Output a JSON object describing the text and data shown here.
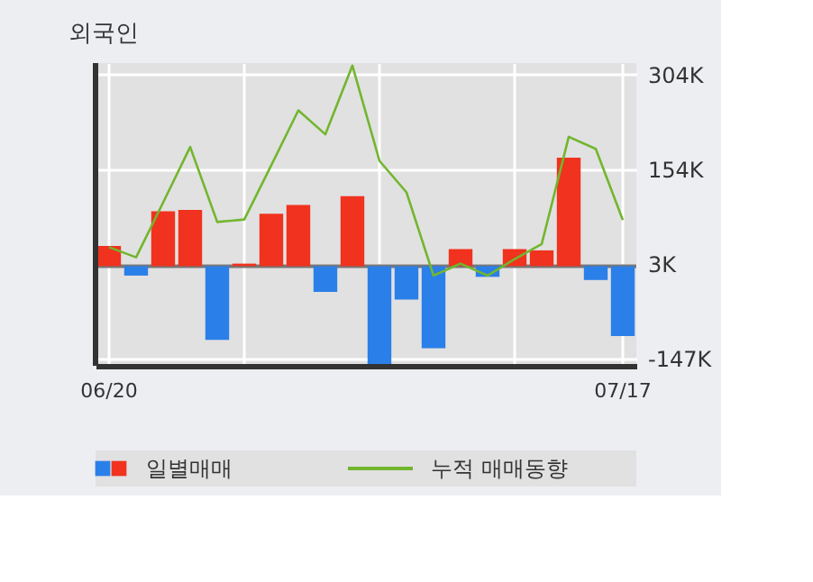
{
  "chart_data": {
    "type": "bar",
    "title": "외국인",
    "categories": [
      "06/20",
      null,
      null,
      null,
      null,
      null,
      null,
      null,
      null,
      null,
      null,
      null,
      null,
      null,
      null,
      null,
      null,
      null,
      null,
      "07/17"
    ],
    "series": [
      {
        "name": "일별매매",
        "values": [
          32,
          -15,
          87,
          89,
          -117,
          4,
          83,
          97,
          -41,
          111,
          -155,
          -53,
          -130,
          27,
          -17,
          27,
          25,
          172,
          -22,
          -111
        ],
        "colors": [
          "#f0321e",
          "#2b7fe8",
          "#f0321e",
          "#f0321e",
          "#2b7fe8",
          "#f0321e",
          "#f0321e",
          "#f0321e",
          "#2b7fe8",
          "#f0321e",
          "#2b7fe8",
          "#2b7fe8",
          "#2b7fe8",
          "#f0321e",
          "#2b7fe8",
          "#f0321e",
          "#f0321e",
          "#f0321e",
          "#2b7fe8",
          "#2b7fe8"
        ]
      },
      {
        "name": "누적 매매동향",
        "type": "line",
        "color": "#72b62e",
        "values": [
          30,
          14,
          101,
          189,
          70,
          74,
          160,
          247,
          209,
          318,
          167,
          117,
          -15,
          4,
          -15,
          11,
          35,
          205,
          186,
          73
        ]
      }
    ],
    "ylim": [
      -158,
      322
    ],
    "yticks": [
      {
        "value": -147,
        "label": "-147K"
      },
      {
        "value": 3,
        "label": "3K"
      },
      {
        "value": 154,
        "label": "154K"
      },
      {
        "value": 304,
        "label": "304K"
      }
    ],
    "grid": true,
    "legend": "bottom"
  }
}
